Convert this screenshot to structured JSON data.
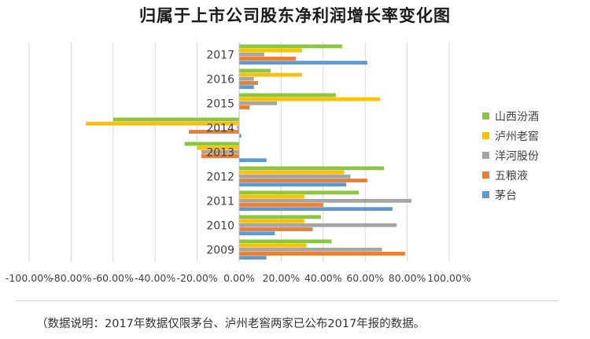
{
  "chart_data": {
    "type": "bar",
    "orientation": "horizontal",
    "title": "归属于上市公司股东净利润增长率变化图",
    "categories": [
      "2009",
      "2010",
      "2011",
      "2012",
      "2013",
      "2014",
      "2015",
      "2016",
      "2017"
    ],
    "xlim": [
      -100,
      100
    ],
    "x_tick_labels": [
      "-100.00%",
      "-80.00%",
      "-60.00%",
      "-40.00%",
      "-20.00%",
      "0.00%",
      "20.00%",
      "40.00%",
      "60.00%",
      "80.00%",
      "100.00%"
    ],
    "grid": true,
    "legend_position": "right",
    "series": [
      {
        "name": "茅台",
        "color": "#5B9BD5",
        "values": [
          13,
          17,
          73,
          51,
          13,
          1,
          0,
          7,
          61
        ]
      },
      {
        "name": "五粮液",
        "color": "#ED7D31",
        "values": [
          79,
          35,
          40,
          61,
          -18,
          -24,
          5,
          9,
          27
        ]
      },
      {
        "name": "洋河股份",
        "color": "#A5A5A5",
        "values": [
          68,
          75,
          82,
          53,
          -18,
          -1,
          18,
          7,
          12
        ]
      },
      {
        "name": "泸州老窖",
        "color": "#FFC000",
        "values": [
          32,
          31,
          31,
          50,
          -20,
          -73,
          67,
          30,
          30
        ]
      },
      {
        "name": "山西汾酒",
        "color": "#8CC63F",
        "values": [
          44,
          39,
          57,
          69,
          -26,
          -60,
          46,
          15,
          49
        ]
      }
    ]
  },
  "note": "（数据说明：2017年数据仅限茅台、泸州老窖两家已公布2017年报的数据。"
}
